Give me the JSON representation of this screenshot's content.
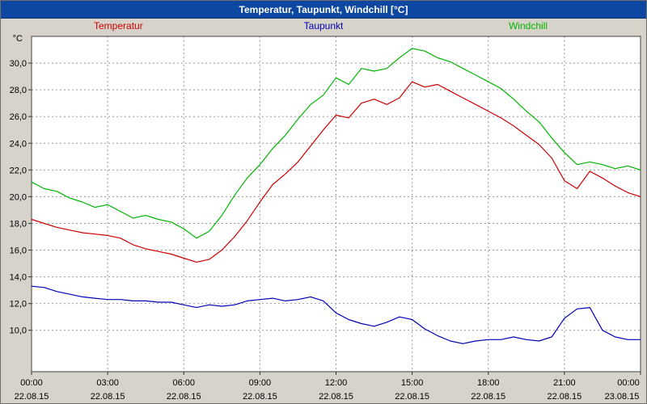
{
  "window": {
    "title": "Temperatur, Taupunkt, Windchill [°C]"
  },
  "legend": {
    "items": [
      {
        "label": "Temperatur",
        "color": "#cc0000"
      },
      {
        "label": "Taupunkt",
        "color": "#0000b4"
      },
      {
        "label": "Windchill",
        "color": "#00b400"
      }
    ],
    "position": "top"
  },
  "axis": {
    "y_unit": "°C"
  },
  "chart_data": {
    "type": "line",
    "title": "Temperatur, Taupunkt, Windchill [°C]",
    "xlabel": "",
    "ylabel": "°C",
    "grid": true,
    "grid_style": "dashed",
    "xlim": [
      0,
      24
    ],
    "ylim": [
      6.9,
      32
    ],
    "x_interval_hours": 0.5,
    "y_ticks": [
      {
        "value": 10,
        "label": "10,0"
      },
      {
        "value": 12,
        "label": "12,0"
      },
      {
        "value": 14,
        "label": "14,0"
      },
      {
        "value": 16,
        "label": "16,0"
      },
      {
        "value": 18,
        "label": "18,0"
      },
      {
        "value": 20,
        "label": "20,0"
      },
      {
        "value": 22,
        "label": "22,0"
      },
      {
        "value": 24,
        "label": "24,0"
      },
      {
        "value": 26,
        "label": "26,0"
      },
      {
        "value": 28,
        "label": "28,0"
      },
      {
        "value": 30,
        "label": "30,0"
      }
    ],
    "x_ticks": [
      {
        "value": 0,
        "time": "00:00",
        "date": "22.08.15"
      },
      {
        "value": 3,
        "time": "03:00",
        "date": "22.08.15"
      },
      {
        "value": 6,
        "time": "06:00",
        "date": "22.08.15"
      },
      {
        "value": 9,
        "time": "09:00",
        "date": "22.08.15"
      },
      {
        "value": 12,
        "time": "12:00",
        "date": "22.08.15"
      },
      {
        "value": 15,
        "time": "15:00",
        "date": "22.08.15"
      },
      {
        "value": 18,
        "time": "18:00",
        "date": "22.08.15"
      },
      {
        "value": 21,
        "time": "21:00",
        "date": "22.08.15"
      },
      {
        "value": 24,
        "time": "00:00",
        "date": "23.08.15"
      }
    ],
    "series": [
      {
        "name": "Temperatur",
        "color": "#cc0000",
        "values": [
          18.3,
          18.0,
          17.7,
          17.5,
          17.3,
          17.2,
          17.1,
          16.9,
          16.4,
          16.1,
          15.9,
          15.7,
          15.4,
          15.1,
          15.3,
          16.0,
          17.0,
          18.2,
          19.6,
          20.9,
          21.7,
          22.6,
          23.8,
          25.0,
          26.1,
          25.9,
          27.0,
          27.3,
          26.9,
          27.4,
          28.6,
          28.2,
          28.4,
          27.9,
          27.4,
          26.9,
          26.4,
          25.9,
          25.3,
          24.6,
          23.9,
          22.9,
          21.2,
          20.6,
          21.9,
          21.4,
          20.8,
          20.3,
          20.0
        ]
      },
      {
        "name": "Taupunkt",
        "color": "#0000b4",
        "values": [
          13.3,
          13.2,
          12.9,
          12.7,
          12.5,
          12.4,
          12.3,
          12.3,
          12.2,
          12.2,
          12.1,
          12.1,
          11.9,
          11.7,
          11.9,
          11.8,
          11.9,
          12.2,
          12.3,
          12.4,
          12.2,
          12.3,
          12.5,
          12.2,
          11.3,
          10.8,
          10.5,
          10.3,
          10.6,
          11.0,
          10.8,
          10.1,
          9.6,
          9.2,
          9.0,
          9.2,
          9.3,
          9.3,
          9.5,
          9.3,
          9.2,
          9.5,
          10.9,
          11.6,
          11.7,
          10.0,
          9.5,
          9.3,
          9.3
        ]
      },
      {
        "name": "Windchill",
        "color": "#00b400",
        "values": [
          21.1,
          20.6,
          20.4,
          19.9,
          19.6,
          19.2,
          19.4,
          18.9,
          18.4,
          18.6,
          18.3,
          18.1,
          17.6,
          16.9,
          17.4,
          18.6,
          20.1,
          21.4,
          22.4,
          23.6,
          24.6,
          25.8,
          26.9,
          27.6,
          28.9,
          28.4,
          29.6,
          29.4,
          29.6,
          30.4,
          31.1,
          30.9,
          30.4,
          30.1,
          29.6,
          29.1,
          28.6,
          28.1,
          27.3,
          26.4,
          25.6,
          24.4,
          23.3,
          22.4,
          22.6,
          22.4,
          22.1,
          22.3,
          22.0
        ]
      }
    ]
  }
}
